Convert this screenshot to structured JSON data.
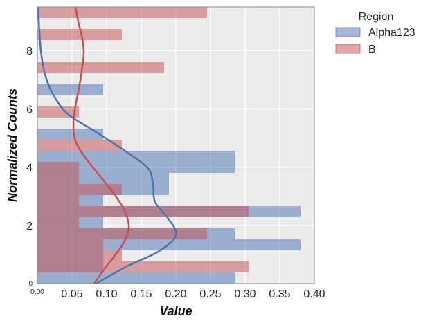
{
  "chart_data": {
    "type": "bar",
    "orientation": "horizontal",
    "title": "",
    "xlabel": "Value",
    "ylabel": "Normalized Counts",
    "xlim": [
      0,
      0.4
    ],
    "ylim": [
      0,
      9.5
    ],
    "x_ticks": [
      "0.00",
      "0.05",
      "0.10",
      "0.15",
      "0.20",
      "0.25",
      "0.30",
      "0.35",
      "0.40"
    ],
    "x_tick_values": [
      0,
      0.05,
      0.1,
      0.15,
      0.2,
      0.25,
      0.3,
      0.35,
      0.4
    ],
    "y_ticks": [
      "0",
      "2",
      "4",
      "6",
      "8"
    ],
    "y_tick_values": [
      0,
      2,
      4,
      6,
      8
    ],
    "grid": true,
    "background": "#EBEBEB",
    "legend": {
      "title": "Region",
      "placement": "outside-top-right",
      "entries": [
        "Alpha123",
        "B"
      ]
    },
    "series": [
      {
        "name": "Alpha123",
        "color": "#4C72B0",
        "bins": [
          {
            "y0": 0.0,
            "y1": 0.38,
            "value": 0.285
          },
          {
            "y0": 0.38,
            "y1": 0.76,
            "value": 0.095
          },
          {
            "y0": 0.76,
            "y1": 1.14,
            "value": 0.095
          },
          {
            "y0": 1.14,
            "y1": 1.52,
            "value": 0.38
          },
          {
            "y0": 1.52,
            "y1": 1.9,
            "value": 0.285
          },
          {
            "y0": 1.9,
            "y1": 2.28,
            "value": 0.095
          },
          {
            "y0": 2.28,
            "y1": 2.66,
            "value": 0.38
          },
          {
            "y0": 2.66,
            "y1": 3.04,
            "value": 0.095
          },
          {
            "y0": 3.04,
            "y1": 3.42,
            "value": 0.19
          },
          {
            "y0": 3.42,
            "y1": 3.8,
            "value": 0.19
          },
          {
            "y0": 3.8,
            "y1": 4.18,
            "value": 0.285
          },
          {
            "y0": 4.18,
            "y1": 4.56,
            "value": 0.285
          },
          {
            "y0": 4.94,
            "y1": 5.32,
            "value": 0.095
          },
          {
            "y0": 6.46,
            "y1": 6.84,
            "value": 0.095
          }
        ],
        "kde": [
          [
            0.085,
            0
          ],
          [
            0.13,
            0.6
          ],
          [
            0.175,
            1.1
          ],
          [
            0.2,
            1.65
          ],
          [
            0.19,
            2.2
          ],
          [
            0.17,
            2.8
          ],
          [
            0.167,
            3.4
          ],
          [
            0.16,
            3.95
          ],
          [
            0.13,
            4.5
          ],
          [
            0.085,
            5.2
          ],
          [
            0.045,
            5.8
          ],
          [
            0.025,
            6.4
          ],
          [
            0.012,
            7.1
          ],
          [
            0.005,
            8
          ],
          [
            0.001,
            9.5
          ]
        ]
      },
      {
        "name": "B",
        "color": "#C44E52",
        "bins": [
          {
            "y0": 0.38,
            "y1": 0.76,
            "value": 0.305
          },
          {
            "y0": 0.76,
            "y1": 1.14,
            "value": 0.122
          },
          {
            "y0": 1.14,
            "y1": 1.52,
            "value": 0.095
          },
          {
            "y0": 1.52,
            "y1": 1.9,
            "value": 0.245
          },
          {
            "y0": 1.9,
            "y1": 2.28,
            "value": 0.06
          },
          {
            "y0": 2.28,
            "y1": 2.66,
            "value": 0.305
          },
          {
            "y0": 2.66,
            "y1": 3.04,
            "value": 0.06
          },
          {
            "y0": 3.04,
            "y1": 3.42,
            "value": 0.122
          },
          {
            "y0": 3.42,
            "y1": 3.8,
            "value": 0.06
          },
          {
            "y0": 3.8,
            "y1": 4.18,
            "value": 0.06
          },
          {
            "y0": 4.56,
            "y1": 4.94,
            "value": 0.122
          },
          {
            "y0": 5.7,
            "y1": 6.08,
            "value": 0.06
          },
          {
            "y0": 7.22,
            "y1": 7.6,
            "value": 0.183
          },
          {
            "y0": 8.36,
            "y1": 8.74,
            "value": 0.122
          },
          {
            "y0": 9.12,
            "y1": 9.5,
            "value": 0.245
          }
        ],
        "kde": [
          [
            0.082,
            0
          ],
          [
            0.1,
            0.6
          ],
          [
            0.122,
            1.3
          ],
          [
            0.132,
            1.9
          ],
          [
            0.126,
            2.5
          ],
          [
            0.11,
            3.1
          ],
          [
            0.09,
            3.7
          ],
          [
            0.07,
            4.3
          ],
          [
            0.055,
            4.9
          ],
          [
            0.052,
            5.5
          ],
          [
            0.055,
            6.1
          ],
          [
            0.06,
            6.7
          ],
          [
            0.064,
            7.3
          ],
          [
            0.067,
            7.9
          ],
          [
            0.065,
            8.4
          ],
          [
            0.059,
            9
          ],
          [
            0.055,
            9.5
          ]
        ]
      }
    ]
  }
}
